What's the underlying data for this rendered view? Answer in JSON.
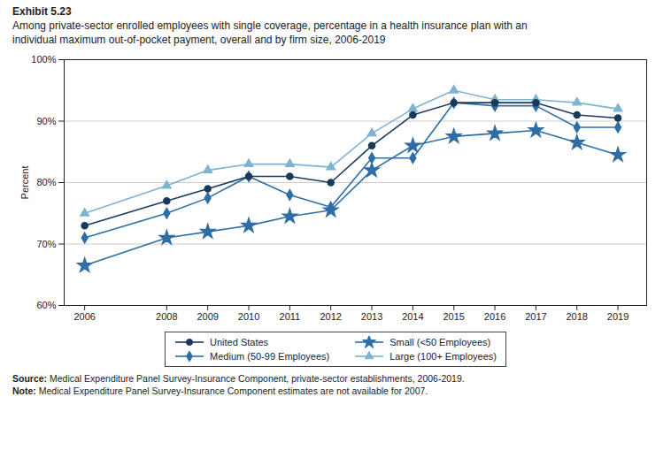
{
  "chart_data": {
    "type": "line",
    "title": "Exhibit 5.23",
    "subtitle": "Among private-sector enrolled employees with single coverage, percentage in a health insurance plan with an\nindividual maximum out-of-pocket payment, overall and by firm size, 2006-2019",
    "ylabel": "Percent",
    "annotations": [
      "Source: Medical Expenditure Panel Survey-Insurance Component, private-sector establishments, 2006-2019.",
      "Note: Medical Expenditure Panel Survey-Insurance Component estimates are not available for 2007."
    ],
    "x": [
      2006,
      2008,
      2009,
      2010,
      2011,
      2012,
      2013,
      2014,
      2015,
      2016,
      2017,
      2018,
      2019
    ],
    "series": [
      {
        "name": "United States",
        "color": "#1a3a5c",
        "marker": "circle",
        "values": [
          73,
          77,
          79,
          81,
          81,
          80,
          86,
          91,
          93,
          93,
          93,
          91,
          90.5
        ]
      },
      {
        "name": "Small (<50 Employees)",
        "color": "#2e6ea6",
        "marker": "star",
        "values": [
          66.5,
          71,
          72,
          73,
          74.5,
          75.5,
          82,
          86,
          87.5,
          88,
          88.5,
          86.5,
          84.5
        ]
      },
      {
        "name": "Medium (50-99 Employees)",
        "color": "#2e6ea6",
        "marker": "diamond",
        "values": [
          71,
          75,
          77.5,
          81,
          78,
          76,
          84,
          84,
          93,
          92.5,
          92.5,
          89,
          89
        ]
      },
      {
        "name": "Large (100+ Employees)",
        "color": "#7fb3d3",
        "marker": "triangle",
        "values": [
          75,
          79.5,
          82,
          83,
          83,
          82.5,
          88,
          92,
          95,
          93.5,
          93.5,
          93,
          92
        ]
      }
    ],
    "xlim": [
      2005.5,
      2019.7
    ],
    "xticks": [
      2006,
      2008,
      2009,
      2010,
      2011,
      2012,
      2013,
      2014,
      2015,
      2016,
      2017,
      2018,
      2019
    ],
    "ylim": [
      60,
      100
    ],
    "yticks": [
      {
        "value": 60,
        "label": "60%"
      },
      {
        "value": 70,
        "label": "70%"
      },
      {
        "value": 80,
        "label": "80%"
      },
      {
        "value": 90,
        "label": "90%"
      },
      {
        "value": 100,
        "label": "100%"
      }
    ],
    "grid": "y",
    "legend": "bottom"
  }
}
